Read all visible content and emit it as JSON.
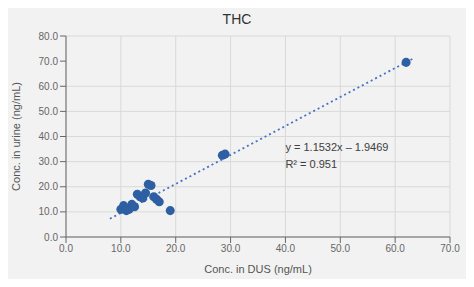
{
  "chart_data": {
    "type": "scatter",
    "title": "THC",
    "xlabel": "Conc. in DUS (ng/mL)",
    "ylabel": "Conc. in urine (ng/mL)",
    "xlim": [
      0.0,
      70.0
    ],
    "ylim": [
      0.0,
      80.0
    ],
    "xticks": [
      {
        "value": 0.0,
        "label": "0.0"
      },
      {
        "value": 10.0,
        "label": "10.0"
      },
      {
        "value": 20.0,
        "label": "20.0"
      },
      {
        "value": 30.0,
        "label": "30.0"
      },
      {
        "value": 40.0,
        "label": "40.0"
      },
      {
        "value": 50.0,
        "label": "50.0"
      },
      {
        "value": 60.0,
        "label": "60.0"
      },
      {
        "value": 70.0,
        "label": "70.0"
      }
    ],
    "yticks": [
      {
        "value": 0.0,
        "label": "0.0"
      },
      {
        "value": 10.0,
        "label": "10.0"
      },
      {
        "value": 20.0,
        "label": "20.0"
      },
      {
        "value": 30.0,
        "label": "30.0"
      },
      {
        "value": 40.0,
        "label": "40.0"
      },
      {
        "value": 50.0,
        "label": "50.0"
      },
      {
        "value": 60.0,
        "label": "60.0"
      },
      {
        "value": 70.0,
        "label": "70.0"
      },
      {
        "value": 80.0,
        "label": "80.0"
      }
    ],
    "grid": true,
    "series": [
      {
        "type": "scatter",
        "color": "#2E5FA3",
        "marker": "circle",
        "x": [
          10.0,
          10.5,
          11.0,
          11.5,
          12.0,
          12.5,
          13.0,
          13.5,
          14.0,
          14.5,
          15.0,
          15.5,
          16.0,
          16.5,
          17.0,
          19.0,
          28.5,
          29.0,
          62.0
        ],
        "values": [
          11.0,
          12.5,
          10.5,
          11.0,
          13.0,
          12.0,
          17.0,
          16.0,
          15.5,
          17.5,
          21.0,
          20.5,
          16.0,
          15.0,
          14.0,
          10.5,
          32.5,
          33.0,
          69.5
        ]
      },
      {
        "type": "line",
        "color": "#4472C4",
        "line_style": "dotted",
        "x": [
          8.0,
          63.5
        ],
        "values": [
          7.2787,
          71.2813
        ]
      }
    ],
    "annotations": [
      {
        "text": "y = 1.1532x – 1.9469\nR² = 0.951",
        "x": 40.0,
        "y": 32.0
      }
    ]
  }
}
